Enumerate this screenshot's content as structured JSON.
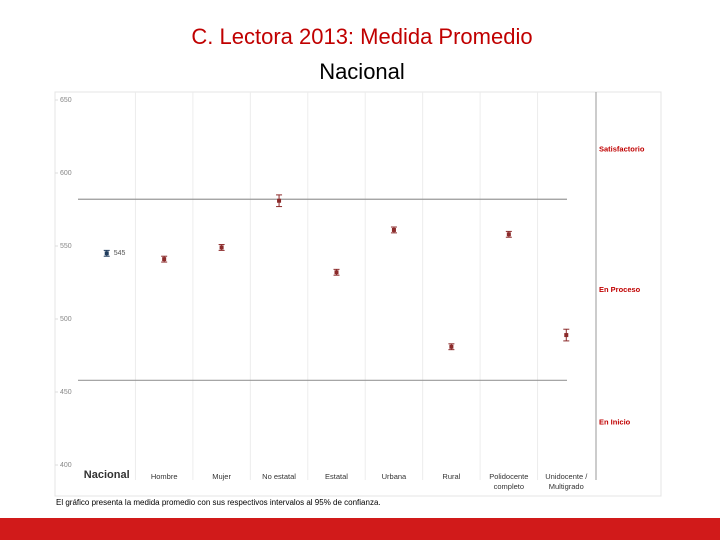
{
  "chart_data": {
    "type": "errorbar",
    "title": "C. Lectora 2013: Medida Promedio",
    "subtitle": "Nacional",
    "categories": [
      "Nacional",
      "Hombre",
      "Mujer",
      "No estatal",
      "Estatal",
      "Urbana",
      "Rural",
      "Polidocente completo",
      "Unidocente / Multigrado"
    ],
    "values": [
      545,
      541,
      549,
      581,
      532,
      561,
      481,
      558,
      489
    ],
    "errors": [
      2,
      2,
      2,
      4,
      2,
      2,
      2,
      2,
      4
    ],
    "value_labels": [
      "545",
      null,
      null,
      null,
      null,
      null,
      null,
      null,
      null
    ],
    "color": "#8b2a2a",
    "highlight_color": "#1f3b5c",
    "ylim": [
      400,
      650
    ],
    "yticks": [
      400,
      450,
      500,
      550,
      600,
      650
    ],
    "thresholds": [
      582,
      458
    ],
    "levels": [
      "Satisfactorio",
      "En Proceso",
      "En Inicio"
    ],
    "note": "El gráfico presenta la medida promedio con sus respectivos intervalos al 95% de confianza."
  }
}
